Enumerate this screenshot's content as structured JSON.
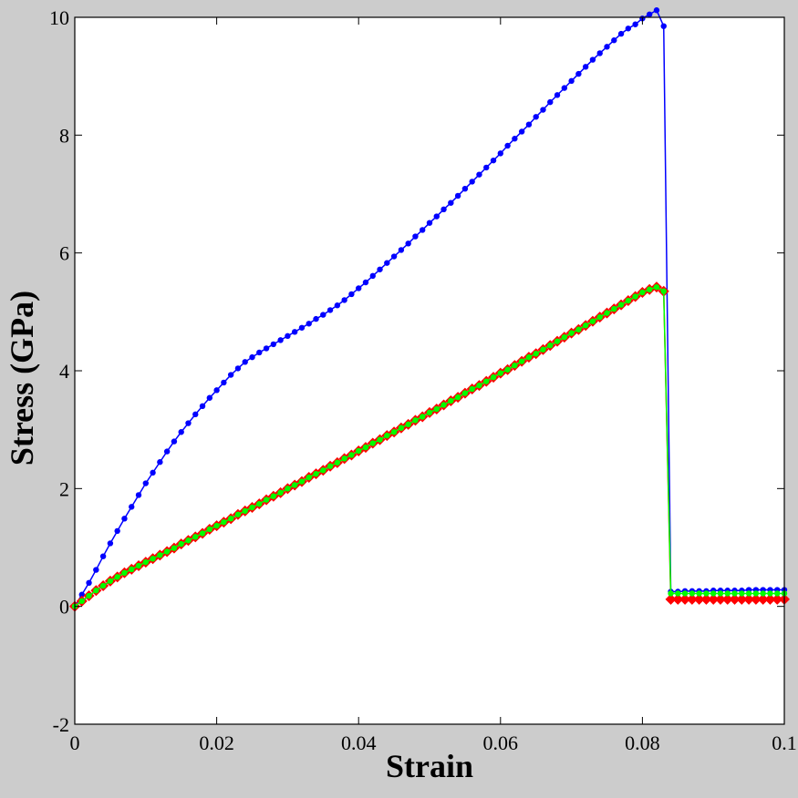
{
  "chart_data": {
    "type": "line",
    "xlabel": "Strain",
    "ylabel": "Stress (GPa)",
    "xlim": [
      0,
      0.1
    ],
    "ylim": [
      -2,
      10
    ],
    "x_ticks": [
      "0",
      "0.02",
      "0.04",
      "0.06",
      "0.08",
      "0.1"
    ],
    "y_ticks": [
      "-2",
      "0",
      "2",
      "4",
      "6",
      "8",
      "10"
    ],
    "x_tick_values": [
      0,
      0.02,
      0.04,
      0.06,
      0.08,
      0.1
    ],
    "y_tick_values": [
      -2,
      0,
      2,
      4,
      6,
      8,
      10
    ],
    "grid": false,
    "legend": "none",
    "colors": {
      "background": "#cccccc",
      "plot_area": "#ffffff"
    },
    "series": [
      {
        "color": "#0000ff",
        "marker": "circle",
        "x": [
          0,
          0.001,
          0.002,
          0.003,
          0.004,
          0.005,
          0.006,
          0.007,
          0.008,
          0.009,
          0.01,
          0.011,
          0.012,
          0.013,
          0.014,
          0.015,
          0.016,
          0.017,
          0.018,
          0.019,
          0.02,
          0.021,
          0.022,
          0.023,
          0.024,
          0.025,
          0.026,
          0.027,
          0.028,
          0.029,
          0.03,
          0.031,
          0.032,
          0.033,
          0.034,
          0.035,
          0.036,
          0.037,
          0.038,
          0.039,
          0.04,
          0.041,
          0.042,
          0.043,
          0.044,
          0.045,
          0.046,
          0.047,
          0.048,
          0.049,
          0.05,
          0.051,
          0.052,
          0.053,
          0.054,
          0.055,
          0.056,
          0.057,
          0.058,
          0.059,
          0.06,
          0.061,
          0.062,
          0.063,
          0.064,
          0.065,
          0.066,
          0.067,
          0.068,
          0.069,
          0.07,
          0.071,
          0.072,
          0.073,
          0.074,
          0.075,
          0.076,
          0.077,
          0.078,
          0.079,
          0.08,
          0.081,
          0.082,
          0.083,
          0.084,
          0.085,
          0.086,
          0.087,
          0.088,
          0.089,
          0.09,
          0.091,
          0.092,
          0.093,
          0.094,
          0.095,
          0.096,
          0.097,
          0.098,
          0.099,
          0.1
        ],
        "y": [
          0,
          0.2,
          0.4,
          0.62,
          0.85,
          1.07,
          1.28,
          1.49,
          1.69,
          1.89,
          2.09,
          2.27,
          2.45,
          2.63,
          2.8,
          2.96,
          3.11,
          3.26,
          3.4,
          3.54,
          3.67,
          3.8,
          3.93,
          4.04,
          4.15,
          4.23,
          4.31,
          4.38,
          4.45,
          4.52,
          4.59,
          4.66,
          4.73,
          4.8,
          4.88,
          4.95,
          5.03,
          5.11,
          5.2,
          5.3,
          5.4,
          5.5,
          5.61,
          5.72,
          5.83,
          5.94,
          6.05,
          6.16,
          6.28,
          6.39,
          6.51,
          6.62,
          6.74,
          6.85,
          6.97,
          7.09,
          7.21,
          7.33,
          7.45,
          7.57,
          7.69,
          7.82,
          7.94,
          8.06,
          8.18,
          8.31,
          8.43,
          8.56,
          8.68,
          8.8,
          8.92,
          9.04,
          9.16,
          9.28,
          9.39,
          9.5,
          9.61,
          9.72,
          9.81,
          9.88,
          9.98,
          10.05,
          10.12,
          9.85,
          0.25,
          0.25,
          0.26,
          0.26,
          0.26,
          0.26,
          0.27,
          0.27,
          0.27,
          0.27,
          0.27,
          0.28,
          0.28,
          0.28,
          0.28,
          0.28,
          0.28
        ]
      },
      {
        "color": "#ff0000",
        "marker": "diamond",
        "x": [
          0,
          0.001,
          0.002,
          0.003,
          0.004,
          0.005,
          0.006,
          0.007,
          0.008,
          0.009,
          0.01,
          0.011,
          0.012,
          0.013,
          0.014,
          0.015,
          0.016,
          0.017,
          0.018,
          0.019,
          0.02,
          0.021,
          0.022,
          0.023,
          0.024,
          0.025,
          0.026,
          0.027,
          0.028,
          0.029,
          0.03,
          0.031,
          0.032,
          0.033,
          0.034,
          0.035,
          0.036,
          0.037,
          0.038,
          0.039,
          0.04,
          0.041,
          0.042,
          0.043,
          0.044,
          0.045,
          0.046,
          0.047,
          0.048,
          0.049,
          0.05,
          0.051,
          0.052,
          0.053,
          0.054,
          0.055,
          0.056,
          0.057,
          0.058,
          0.059,
          0.06,
          0.061,
          0.062,
          0.063,
          0.064,
          0.065,
          0.066,
          0.067,
          0.068,
          0.069,
          0.07,
          0.071,
          0.072,
          0.073,
          0.074,
          0.075,
          0.076,
          0.077,
          0.078,
          0.079,
          0.08,
          0.081,
          0.082,
          0.083,
          0.084,
          0.085,
          0.086,
          0.087,
          0.088,
          0.089,
          0.09,
          0.091,
          0.092,
          0.093,
          0.094,
          0.095,
          0.096,
          0.097,
          0.098,
          0.099,
          0.1
        ],
        "y": [
          0,
          0.09,
          0.18,
          0.27,
          0.35,
          0.43,
          0.5,
          0.57,
          0.63,
          0.69,
          0.75,
          0.81,
          0.87,
          0.93,
          0.99,
          1.06,
          1.12,
          1.18,
          1.24,
          1.31,
          1.37,
          1.43,
          1.49,
          1.56,
          1.62,
          1.68,
          1.74,
          1.81,
          1.87,
          1.93,
          2.0,
          2.06,
          2.12,
          2.19,
          2.25,
          2.31,
          2.38,
          2.44,
          2.51,
          2.57,
          2.64,
          2.7,
          2.77,
          2.83,
          2.9,
          2.96,
          3.03,
          3.09,
          3.16,
          3.22,
          3.29,
          3.35,
          3.42,
          3.49,
          3.55,
          3.62,
          3.69,
          3.75,
          3.82,
          3.89,
          3.96,
          4.02,
          4.09,
          4.16,
          4.23,
          4.29,
          4.36,
          4.43,
          4.5,
          4.57,
          4.64,
          4.7,
          4.77,
          4.84,
          4.91,
          4.98,
          5.05,
          5.12,
          5.19,
          5.26,
          5.33,
          5.38,
          5.42,
          5.35,
          0.12,
          0.12,
          0.12,
          0.12,
          0.12,
          0.12,
          0.12,
          0.12,
          0.12,
          0.12,
          0.12,
          0.12,
          0.12,
          0.12,
          0.12,
          0.12,
          0.12
        ]
      },
      {
        "color": "#00ff00",
        "marker": "circle",
        "x": [
          0,
          0.001,
          0.002,
          0.003,
          0.004,
          0.005,
          0.006,
          0.007,
          0.008,
          0.009,
          0.01,
          0.011,
          0.012,
          0.013,
          0.014,
          0.015,
          0.016,
          0.017,
          0.018,
          0.019,
          0.02,
          0.021,
          0.022,
          0.023,
          0.024,
          0.025,
          0.026,
          0.027,
          0.028,
          0.029,
          0.03,
          0.031,
          0.032,
          0.033,
          0.034,
          0.035,
          0.036,
          0.037,
          0.038,
          0.039,
          0.04,
          0.041,
          0.042,
          0.043,
          0.044,
          0.045,
          0.046,
          0.047,
          0.048,
          0.049,
          0.05,
          0.051,
          0.052,
          0.053,
          0.054,
          0.055,
          0.056,
          0.057,
          0.058,
          0.059,
          0.06,
          0.061,
          0.062,
          0.063,
          0.064,
          0.065,
          0.066,
          0.067,
          0.068,
          0.069,
          0.07,
          0.071,
          0.072,
          0.073,
          0.074,
          0.075,
          0.076,
          0.077,
          0.078,
          0.079,
          0.08,
          0.081,
          0.082,
          0.083,
          0.084,
          0.085,
          0.086,
          0.087,
          0.088,
          0.089,
          0.09,
          0.091,
          0.092,
          0.093,
          0.094,
          0.095,
          0.096,
          0.097,
          0.098,
          0.099,
          0.1
        ],
        "y": [
          0,
          0.09,
          0.18,
          0.27,
          0.35,
          0.43,
          0.5,
          0.57,
          0.63,
          0.69,
          0.75,
          0.81,
          0.87,
          0.93,
          0.99,
          1.06,
          1.12,
          1.18,
          1.24,
          1.31,
          1.37,
          1.43,
          1.49,
          1.56,
          1.62,
          1.68,
          1.74,
          1.81,
          1.87,
          1.93,
          2.0,
          2.06,
          2.12,
          2.19,
          2.25,
          2.31,
          2.38,
          2.44,
          2.51,
          2.57,
          2.64,
          2.7,
          2.77,
          2.83,
          2.9,
          2.96,
          3.03,
          3.09,
          3.16,
          3.22,
          3.29,
          3.35,
          3.42,
          3.49,
          3.55,
          3.62,
          3.69,
          3.75,
          3.82,
          3.89,
          3.96,
          4.02,
          4.09,
          4.16,
          4.23,
          4.29,
          4.36,
          4.43,
          4.5,
          4.57,
          4.64,
          4.7,
          4.77,
          4.84,
          4.91,
          4.98,
          5.05,
          5.12,
          5.19,
          5.26,
          5.33,
          5.38,
          5.42,
          5.35,
          0.22,
          0.22,
          0.22,
          0.22,
          0.22,
          0.22,
          0.22,
          0.22,
          0.22,
          0.22,
          0.22,
          0.22,
          0.22,
          0.22,
          0.22,
          0.22,
          0.22
        ]
      }
    ]
  }
}
